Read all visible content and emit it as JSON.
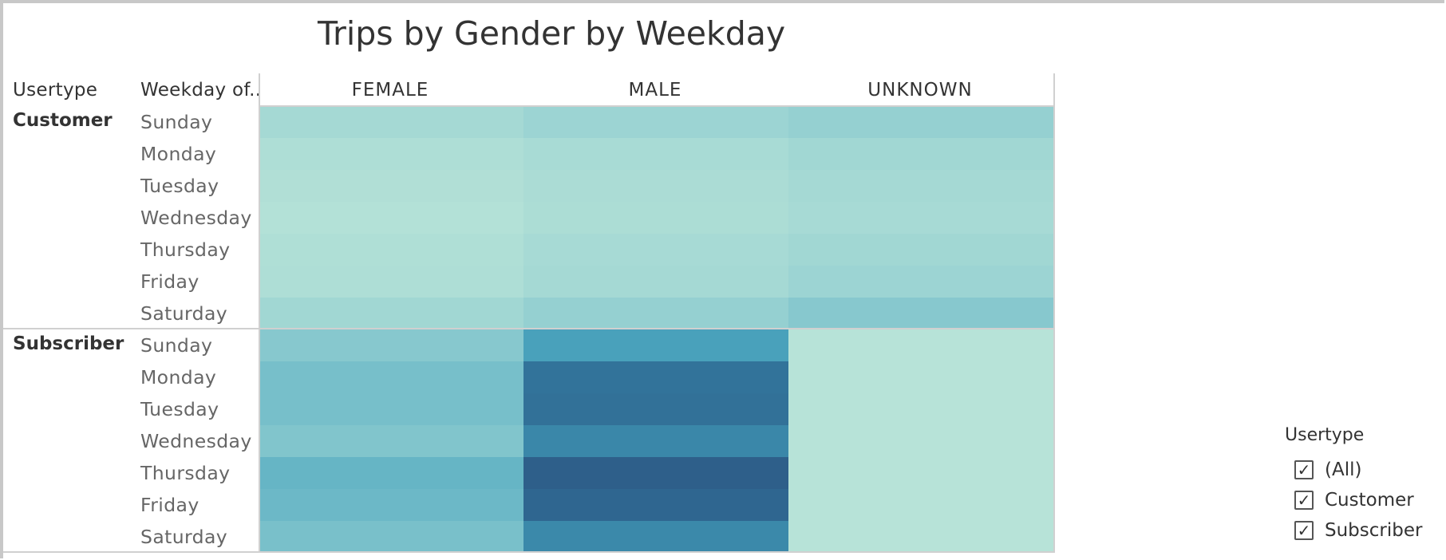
{
  "chart_data": {
    "type": "heatmap",
    "title": "Trips by Gender by Weekday",
    "row_headers": [
      "Usertype",
      "Weekday of.."
    ],
    "columns": [
      "FEMALE",
      "MALE",
      "UNKNOWN"
    ],
    "groups": [
      {
        "usertype": "Customer",
        "rows": [
          {
            "day": "Sunday",
            "values": [
              0.17,
              0.24,
              0.3
            ]
          },
          {
            "day": "Monday",
            "values": [
              0.09,
              0.14,
              0.2
            ]
          },
          {
            "day": "Tuesday",
            "values": [
              0.07,
              0.12,
              0.17
            ]
          },
          {
            "day": "Wednesday",
            "values": [
              0.05,
              0.11,
              0.15
            ]
          },
          {
            "day": "Thursday",
            "values": [
              0.08,
              0.15,
              0.2
            ]
          },
          {
            "day": "Friday",
            "values": [
              0.09,
              0.17,
              0.24
            ]
          },
          {
            "day": "Saturday",
            "values": [
              0.2,
              0.3,
              0.38
            ]
          }
        ]
      },
      {
        "usertype": "Subscriber",
        "rows": [
          {
            "day": "Sunday",
            "values": [
              0.38,
              0.62,
              0.02
            ]
          },
          {
            "day": "Monday",
            "values": [
              0.44,
              0.86,
              0.02
            ]
          },
          {
            "day": "Tuesday",
            "values": [
              0.44,
              0.87,
              0.02
            ]
          },
          {
            "day": "Wednesday",
            "values": [
              0.4,
              0.75,
              0.02
            ]
          },
          {
            "day": "Thursday",
            "values": [
              0.5,
              0.97,
              0.02
            ]
          },
          {
            "day": "Friday",
            "values": [
              0.48,
              0.93,
              0.02
            ]
          },
          {
            "day": "Saturday",
            "values": [
              0.43,
              0.74,
              0.02
            ]
          }
        ]
      }
    ],
    "value_note": "relative trip count intensity (0 = lightest, 1 = darkest)",
    "color_low": "#b9e4d8",
    "color_high": "#2d5a86"
  },
  "filter": {
    "title": "Usertype",
    "options": [
      {
        "label": "(All)",
        "checked": true
      },
      {
        "label": "Customer",
        "checked": true
      },
      {
        "label": "Subscriber",
        "checked": true
      }
    ],
    "check_glyph": "✓"
  }
}
